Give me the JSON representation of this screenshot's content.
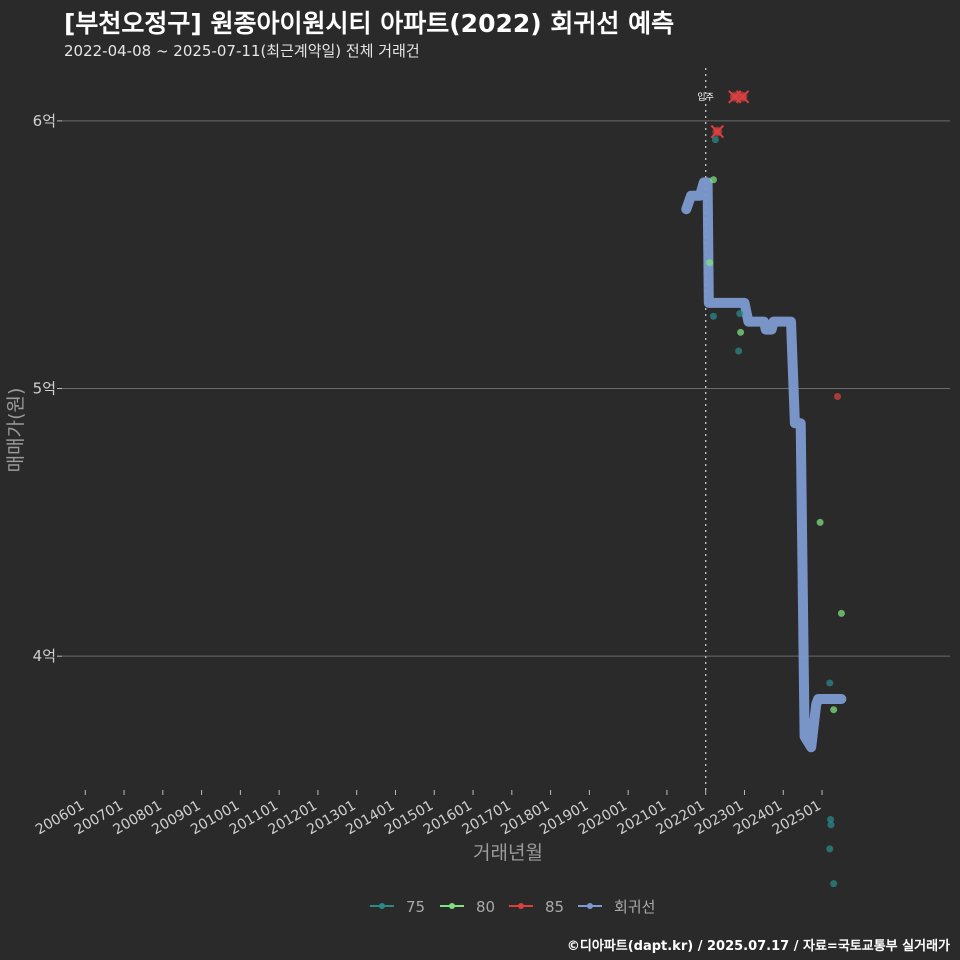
{
  "header": {
    "title": "[부천오정구] 원종아이원시티 아파트(2022) 회귀선 예측",
    "subtitle": "2022-04-08 ~ 2025-07-11(최근계약일) 전체 거래건"
  },
  "footer": {
    "credit": "©디아파트(dapt.kr) / 2025.07.17 / 자료=국토교통부 실거래가"
  },
  "colors": {
    "background": "#2b2a2b",
    "grid": "#6b6b6b",
    "s75": "#2a8a8a",
    "s80": "#7ee07e",
    "s85": "#d94040",
    "regression": "#7d9bd1",
    "move_in_line": "#bdbdbd"
  },
  "chart_data": {
    "type": "scatter",
    "title": "[부천오정구] 원종아이원시티 아파트(2022) 회귀선 예측",
    "xlabel": "거래년월",
    "ylabel": "매매가(원)",
    "x_tick_labels": [
      "200601",
      "200701",
      "200801",
      "200901",
      "201001",
      "201101",
      "201201",
      "201301",
      "201401",
      "201501",
      "201601",
      "201701",
      "201801",
      "201901",
      "202001",
      "202101",
      "202201",
      "202301",
      "202401",
      "202501"
    ],
    "xlim": [
      2005.4,
      2028.3
    ],
    "ylim_eok": [
      3.5,
      6.22
    ],
    "y_ticks": [
      {
        "value": 4,
        "label": "4억"
      },
      {
        "value": 5,
        "label": "5억"
      },
      {
        "value": 6,
        "label": "6억"
      }
    ],
    "move_in": {
      "x": 2022.0,
      "label": "입주"
    },
    "series": [
      {
        "name": "75",
        "key": "s75",
        "points": [
          {
            "x": 2022.2,
            "y": 5.27
          },
          {
            "x": 2022.25,
            "y": 5.93
          },
          {
            "x": 2022.85,
            "y": 5.14
          },
          {
            "x": 2022.88,
            "y": 5.28
          },
          {
            "x": 2025.2,
            "y": 3.9
          },
          {
            "x": 2025.22,
            "y": 3.39
          },
          {
            "x": 2025.23,
            "y": 3.37
          },
          {
            "x": 2025.2,
            "y": 3.28
          },
          {
            "x": 2025.3,
            "y": 3.15
          }
        ]
      },
      {
        "name": "80",
        "key": "s80",
        "points": [
          {
            "x": 2022.1,
            "y": 5.47
          },
          {
            "x": 2022.2,
            "y": 5.78
          },
          {
            "x": 2022.9,
            "y": 5.21
          },
          {
            "x": 2024.95,
            "y": 4.5
          },
          {
            "x": 2025.3,
            "y": 3.8
          },
          {
            "x": 2025.5,
            "y": 4.16
          }
        ]
      },
      {
        "name": "85",
        "key": "s85",
        "points": [
          {
            "x": 2022.3,
            "y": 5.96
          },
          {
            "x": 2022.75,
            "y": 6.09
          },
          {
            "x": 2022.95,
            "y": 6.09
          },
          {
            "x": 2025.4,
            "y": 4.97
          }
        ],
        "outliers": [
          {
            "x": 2022.3,
            "y": 5.96
          },
          {
            "x": 2022.75,
            "y": 6.09
          },
          {
            "x": 2022.95,
            "y": 6.09
          }
        ]
      }
    ],
    "regression": {
      "name": "회귀선",
      "key": "regression",
      "points": [
        {
          "x": 2021.5,
          "y": 5.67
        },
        {
          "x": 2021.62,
          "y": 5.72
        },
        {
          "x": 2021.85,
          "y": 5.72
        },
        {
          "x": 2021.95,
          "y": 5.77
        },
        {
          "x": 2022.05,
          "y": 5.77
        },
        {
          "x": 2022.08,
          "y": 5.32
        },
        {
          "x": 2023.0,
          "y": 5.32
        },
        {
          "x": 2023.1,
          "y": 5.25
        },
        {
          "x": 2023.5,
          "y": 5.25
        },
        {
          "x": 2023.55,
          "y": 5.22
        },
        {
          "x": 2023.7,
          "y": 5.22
        },
        {
          "x": 2023.75,
          "y": 5.25
        },
        {
          "x": 2024.2,
          "y": 5.25
        },
        {
          "x": 2024.3,
          "y": 4.87
        },
        {
          "x": 2024.45,
          "y": 4.87
        },
        {
          "x": 2024.55,
          "y": 3.7
        },
        {
          "x": 2024.72,
          "y": 3.66
        },
        {
          "x": 2024.85,
          "y": 3.82
        },
        {
          "x": 2024.9,
          "y": 3.84
        },
        {
          "x": 2025.5,
          "y": 3.84
        }
      ]
    },
    "legend": [
      {
        "key": "s75",
        "label": "75"
      },
      {
        "key": "s80",
        "label": "80"
      },
      {
        "key": "s85",
        "label": "85"
      },
      {
        "key": "regression",
        "label": "회귀선"
      }
    ]
  }
}
